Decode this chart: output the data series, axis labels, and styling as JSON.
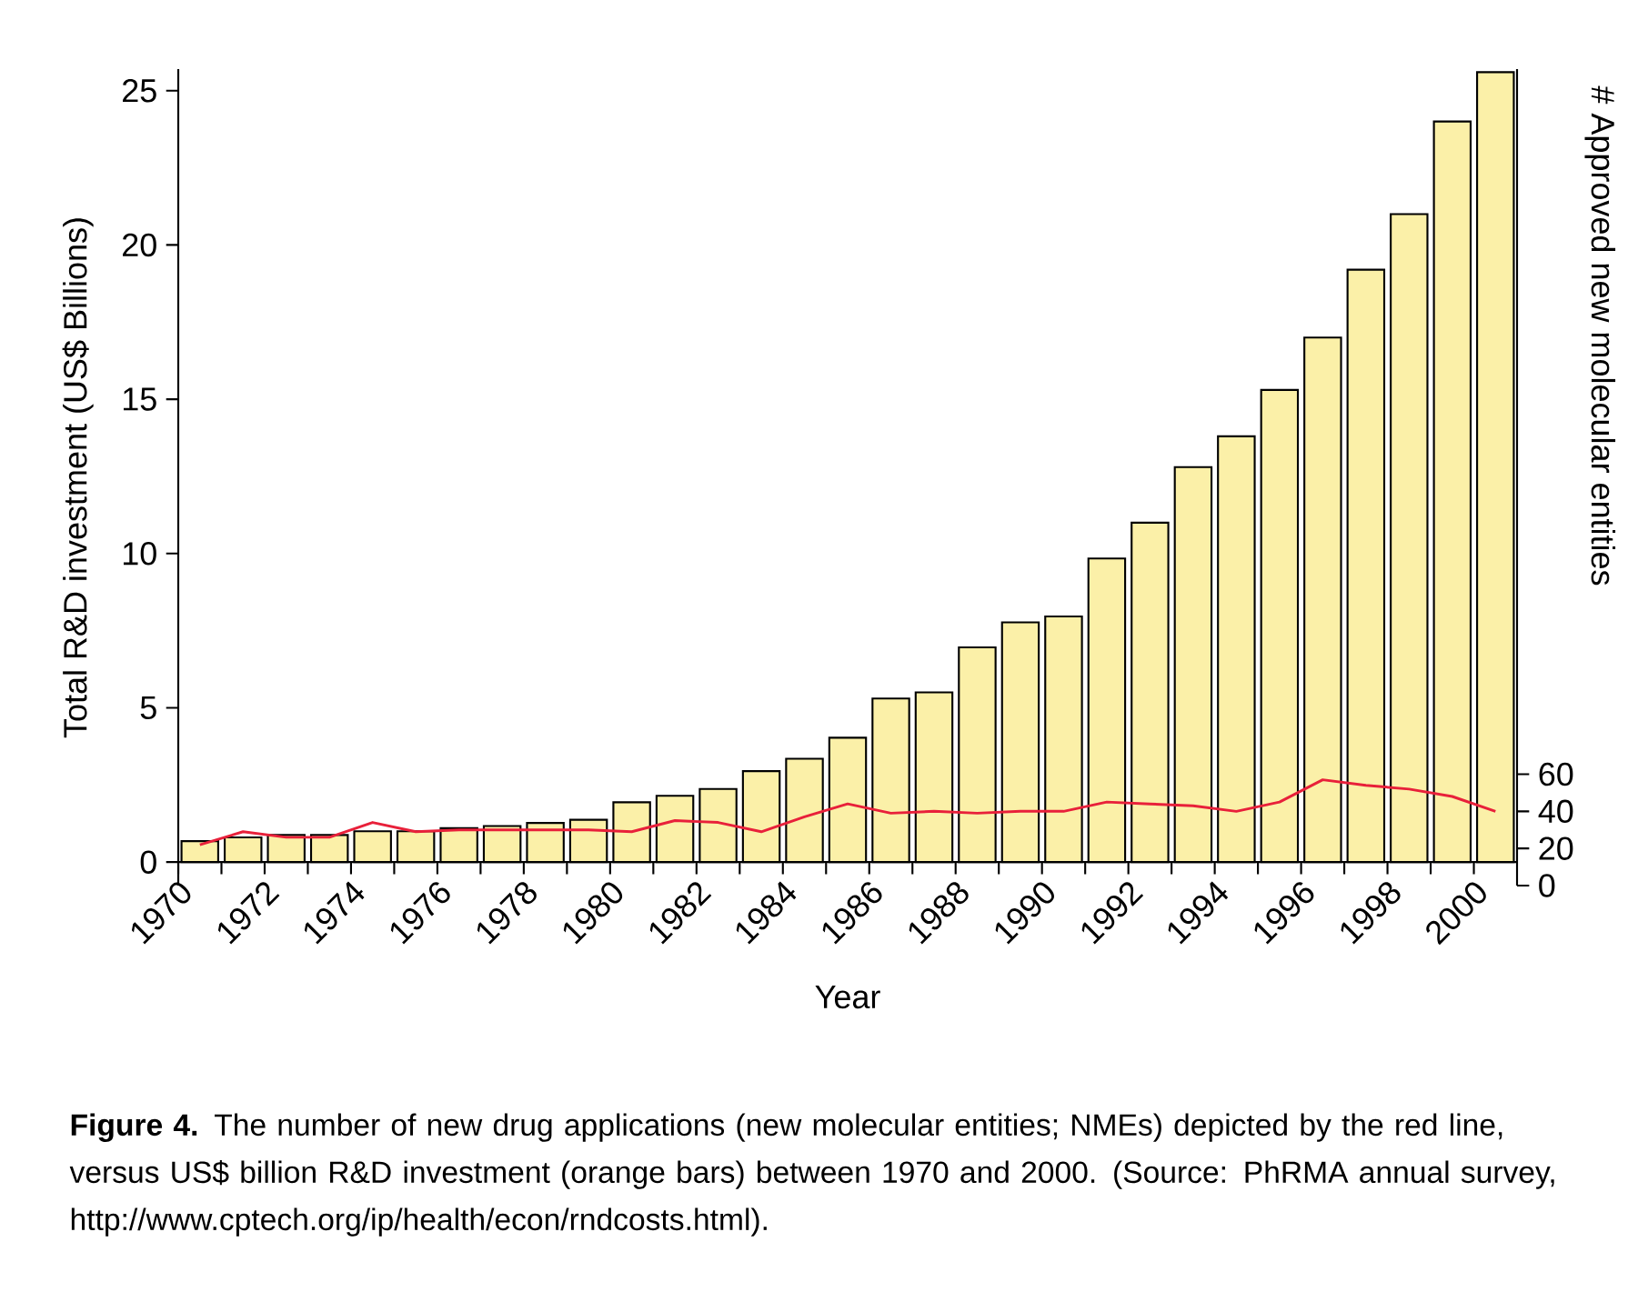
{
  "chart_data": {
    "type": "bar",
    "xlabel": "Year",
    "ylabel": "Total R&D investment (US$ Billions)",
    "y2label": "# Approved new molecular entities",
    "x": [
      1970.5,
      1971.5,
      1972.5,
      1973.5,
      1974.5,
      1975.5,
      1976.5,
      1977.5,
      1978.5,
      1979.5,
      1980.5,
      1981.5,
      1982.5,
      1983.5,
      1984.5,
      1985.5,
      1986.5,
      1987.5,
      1988.5,
      1989.5,
      1990.5,
      1991.5,
      1992.5,
      1993.5,
      1994.5,
      1995.5,
      1996.5,
      1997.5,
      1998.5,
      1999.5,
      2000.5
    ],
    "xlim": [
      1970,
      2001
    ],
    "xticks": [
      1970,
      {
        "value": 1971,
        "label": null
      },
      1972,
      {
        "value": 1973,
        "label": null
      },
      1974,
      {
        "value": 1975,
        "label": null
      },
      1976,
      {
        "value": 1977,
        "label": null
      },
      1978,
      {
        "value": 1979,
        "label": null
      },
      1980,
      {
        "value": 1981,
        "label": null
      },
      1982,
      {
        "value": 1983,
        "label": null
      },
      1984,
      {
        "value": 1985,
        "label": null
      },
      1986,
      {
        "value": 1987,
        "label": null
      },
      1988,
      {
        "value": 1989,
        "label": null
      },
      1990,
      {
        "value": 1991,
        "label": null
      },
      1992,
      {
        "value": 1993,
        "label": null
      },
      1994,
      {
        "value": 1995,
        "label": null
      },
      1996,
      {
        "value": 1997,
        "label": null
      },
      1998,
      {
        "value": 1999,
        "label": null
      },
      2000
    ],
    "ylim": [
      -0.76,
      25.7
    ],
    "yticks": [
      0,
      5,
      10,
      15,
      20,
      25
    ],
    "y2lim": [
      0,
      440
    ],
    "y2ticks": [
      0,
      20,
      40,
      60
    ],
    "series": [
      {
        "type": "bar",
        "color": "#fbf0a8",
        "values": [
          0.68,
          0.8,
          0.88,
          0.88,
          1.0,
          1.0,
          1.1,
          1.17,
          1.27,
          1.37,
          1.94,
          2.15,
          2.37,
          2.95,
          3.35,
          4.03,
          5.3,
          5.5,
          6.96,
          7.77,
          7.96,
          9.84,
          11.0,
          12.8,
          13.8,
          15.3,
          17.0,
          19.2,
          21.0,
          24.0,
          25.6
        ]
      },
      {
        "type": "line",
        "axis": "y2",
        "color": "#e8203a",
        "values": [
          22,
          29,
          26,
          26,
          34,
          29,
          30,
          30,
          30,
          30,
          29,
          35,
          34,
          29,
          37,
          44,
          39,
          40,
          39,
          40,
          40,
          45,
          44,
          43,
          40,
          45,
          57,
          54,
          52,
          48,
          40
        ]
      }
    ],
    "annotations": [
      "**Figure 4.** The number of new drug applications (new molecular entities; NMEs) depicted by the red line, versus US$ billion R&D investment (orange bars) between 1970 and 2000. (Source: PhRMA annual survey, http://www.cptech.org/ip/health/econ/rndcosts.html)."
    ]
  }
}
